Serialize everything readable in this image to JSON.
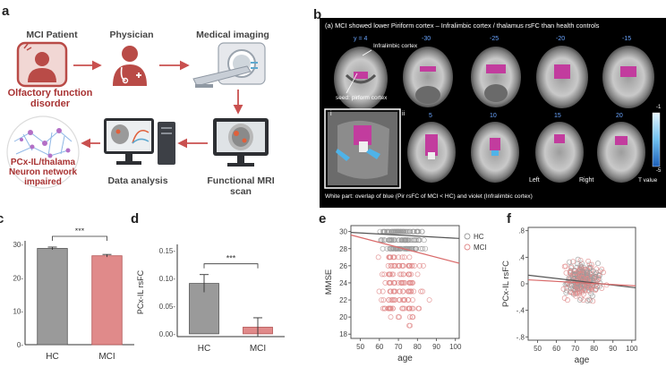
{
  "panel_labels": {
    "a": "a",
    "b": "b",
    "c": "c",
    "d": "d",
    "e": "e",
    "f": "f"
  },
  "workflow": {
    "patient": "MCI Patient",
    "physician": "Physician",
    "imaging": "Medical imaging",
    "olfactory_line1": "Olfactory function",
    "olfactory_line2": "disorder",
    "network_line1": "PCx-IL/thalama",
    "network_line2": "Neuron network",
    "network_line3": "impaired",
    "analysis": "Data analysis",
    "fmri_line1": "Functional MRI",
    "fmri_line2": "scan"
  },
  "brain_panel": {
    "title": "(a) MCI showed lower Piriform cortex – Infralimbic cortex / thalamus rsFC than health controls",
    "top_slice_labels": [
      "y = 4",
      "-30",
      "-25",
      "-20",
      "-15"
    ],
    "bottom_slice_labels": [
      "5",
      "10",
      "15",
      "20"
    ],
    "infralimbic_label": "Infralimbic cortex",
    "seed_label": "seed: pirform cortex",
    "inset_i": "i",
    "inset_ii": "ii",
    "left_label": "Left",
    "right_label": "Right",
    "bottom_note": "White part: overlap of blue (Pir rsFC of MCI < HC) and violet (Infralimbic cortex)",
    "colorbar_top": "-1",
    "colorbar_bottom": "-5",
    "colorbar_label": "T value"
  },
  "colors": {
    "hc": "#9a9a9a",
    "mci": "#e08a8a",
    "arrow": "#c9504f",
    "highlight": "#c23c9e"
  },
  "chart_data": [
    {
      "panel": "c",
      "type": "bar",
      "categories": [
        "HC",
        "MCI"
      ],
      "values": [
        28.8,
        26.6
      ],
      "errors": [
        0.4,
        0.4
      ],
      "ylim": [
        0,
        30
      ],
      "yticks": [
        0,
        10,
        20,
        30
      ],
      "ytick_labels": [
        "0-",
        "10-",
        "20-",
        "30-"
      ],
      "significance": "***",
      "xlabel": "",
      "ylabel": ""
    },
    {
      "panel": "d",
      "type": "bar",
      "categories": [
        "HC",
        "MCI"
      ],
      "values": [
        0.091,
        0.012
      ],
      "errors": [
        0.016,
        0.017
      ],
      "ylim": [
        -0.005,
        0.155
      ],
      "yticks": [
        0,
        0.05,
        0.1,
        0.15
      ],
      "ytick_labels": [
        "0.00-",
        "0.05-",
        "0.10-",
        "0.15-"
      ],
      "significance": "***",
      "xlabel": "",
      "ylabel": "PCx-IL rsFC"
    },
    {
      "panel": "e",
      "type": "scatter",
      "xlabel": "age",
      "ylabel": "MMSE",
      "xlim": [
        45,
        102
      ],
      "ylim": [
        17.5,
        30.7
      ],
      "xticks": [
        50,
        60,
        70,
        80,
        90,
        100
      ],
      "yticks": [
        18,
        20,
        22,
        24,
        26,
        28,
        30
      ],
      "legend": [
        "HC",
        "MCI"
      ],
      "legend_position": "top-right",
      "hc_fit": [
        [
          45,
          29.9
        ],
        [
          102,
          29.2
        ]
      ],
      "mci_fit": [
        [
          45,
          29.6
        ],
        [
          102,
          26.3
        ]
      ]
    },
    {
      "panel": "f",
      "type": "scatter",
      "xlabel": "age",
      "ylabel": "PCx-IL rsFC",
      "xlim": [
        45,
        102
      ],
      "ylim": [
        -0.85,
        0.85
      ],
      "xticks": [
        50,
        60,
        70,
        80,
        90,
        100
      ],
      "yticks": [
        -0.8,
        -0.4,
        0,
        0.4,
        0.8
      ],
      "ytick_labels": [
        "-.8",
        "-.4",
        "0",
        ".4",
        ".8"
      ],
      "hc_fit": [
        [
          45,
          0.13
        ],
        [
          102,
          -0.06
        ]
      ],
      "mci_fit": [
        [
          45,
          0.06
        ],
        [
          102,
          -0.03
        ]
      ]
    }
  ]
}
